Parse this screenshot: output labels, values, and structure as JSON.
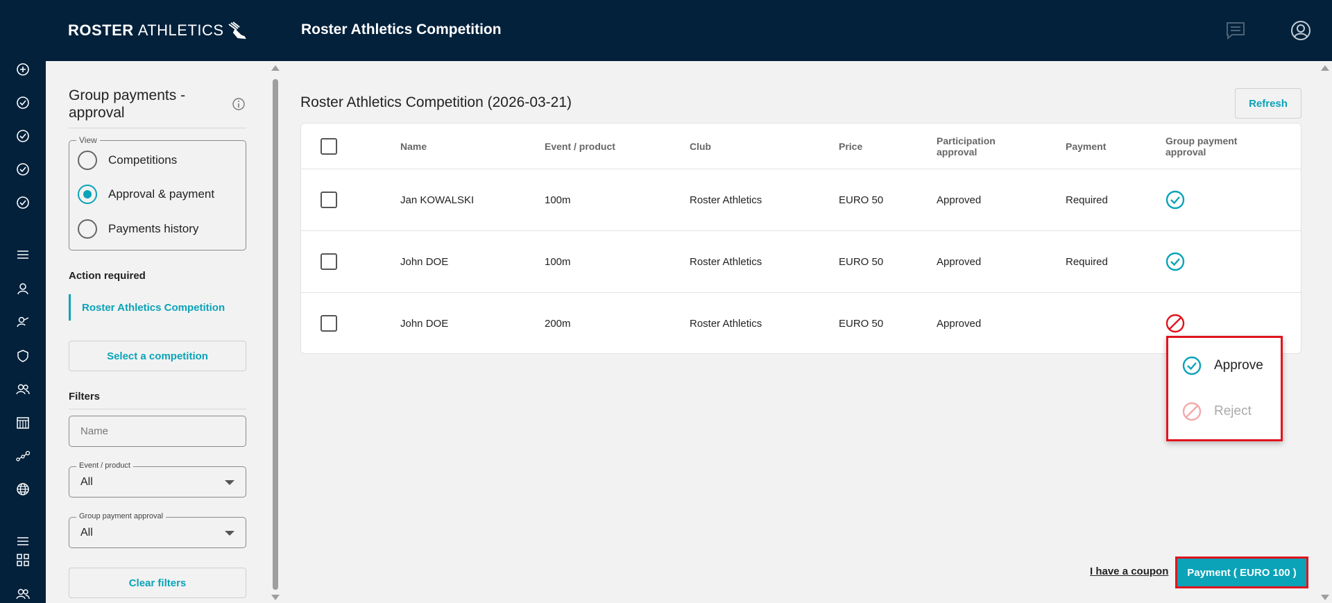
{
  "header": {
    "logo_bold": "ROSTER",
    "logo_light": "ATHLETICS",
    "title": "Roster Athletics Competition"
  },
  "rail_icons": [
    "add-circle-icon",
    "check-circle-icon",
    "check-circle-icon",
    "check-circle-icon",
    "check-circle-icon",
    "menu-icon",
    "person-icon",
    "coach-icon",
    "shield-icon",
    "group-icon",
    "calendar-icon",
    "ranking-icon",
    "globe-icon",
    "menu-icon",
    "grid-icon",
    "group-icon"
  ],
  "panel": {
    "title": "Group payments - approval",
    "view_legend": "View",
    "view_options": [
      "Competitions",
      "Approval & payment",
      "Payments history"
    ],
    "selected_view": "Approval & payment",
    "action_required_label": "Action required",
    "action_item": "Roster Athletics Competition",
    "select_competition": "Select a competition",
    "filters_label": "Filters",
    "name_placeholder": "Name",
    "event_legend": "Event / product",
    "event_value": "All",
    "approval_legend": "Group payment approval",
    "approval_value": "All",
    "clear_filters": "Clear filters"
  },
  "main": {
    "title": "Roster Athletics Competition (2026-03-21)",
    "refresh": "Refresh",
    "columns": [
      "Name",
      "Event / product",
      "Club",
      "Price",
      "Participation approval",
      "Payment",
      "Group payment approval"
    ],
    "rows": [
      {
        "name": "Jan KOWALSKI",
        "event": "100m",
        "club": "Roster Athletics",
        "price": "EURO 50",
        "participation": "Approved",
        "payment": "Required",
        "group_approval": "approved"
      },
      {
        "name": "John DOE",
        "event": "100m",
        "club": "Roster Athletics",
        "price": "EURO 50",
        "participation": "Approved",
        "payment": "Required",
        "group_approval": "approved"
      },
      {
        "name": "John DOE",
        "event": "200m",
        "club": "Roster Athletics",
        "price": "EURO 50",
        "participation": "Approved",
        "payment": "",
        "group_approval": "rejected"
      }
    ],
    "popup": {
      "approve": "Approve",
      "reject": "Reject"
    },
    "coupon": "I have a coupon",
    "payment_button": "Payment ( EURO 100 )"
  },
  "colors": {
    "navy": "#03213b",
    "accent": "#0aa3b8",
    "reject": "#e0141e",
    "highlight": "#e0141e"
  }
}
